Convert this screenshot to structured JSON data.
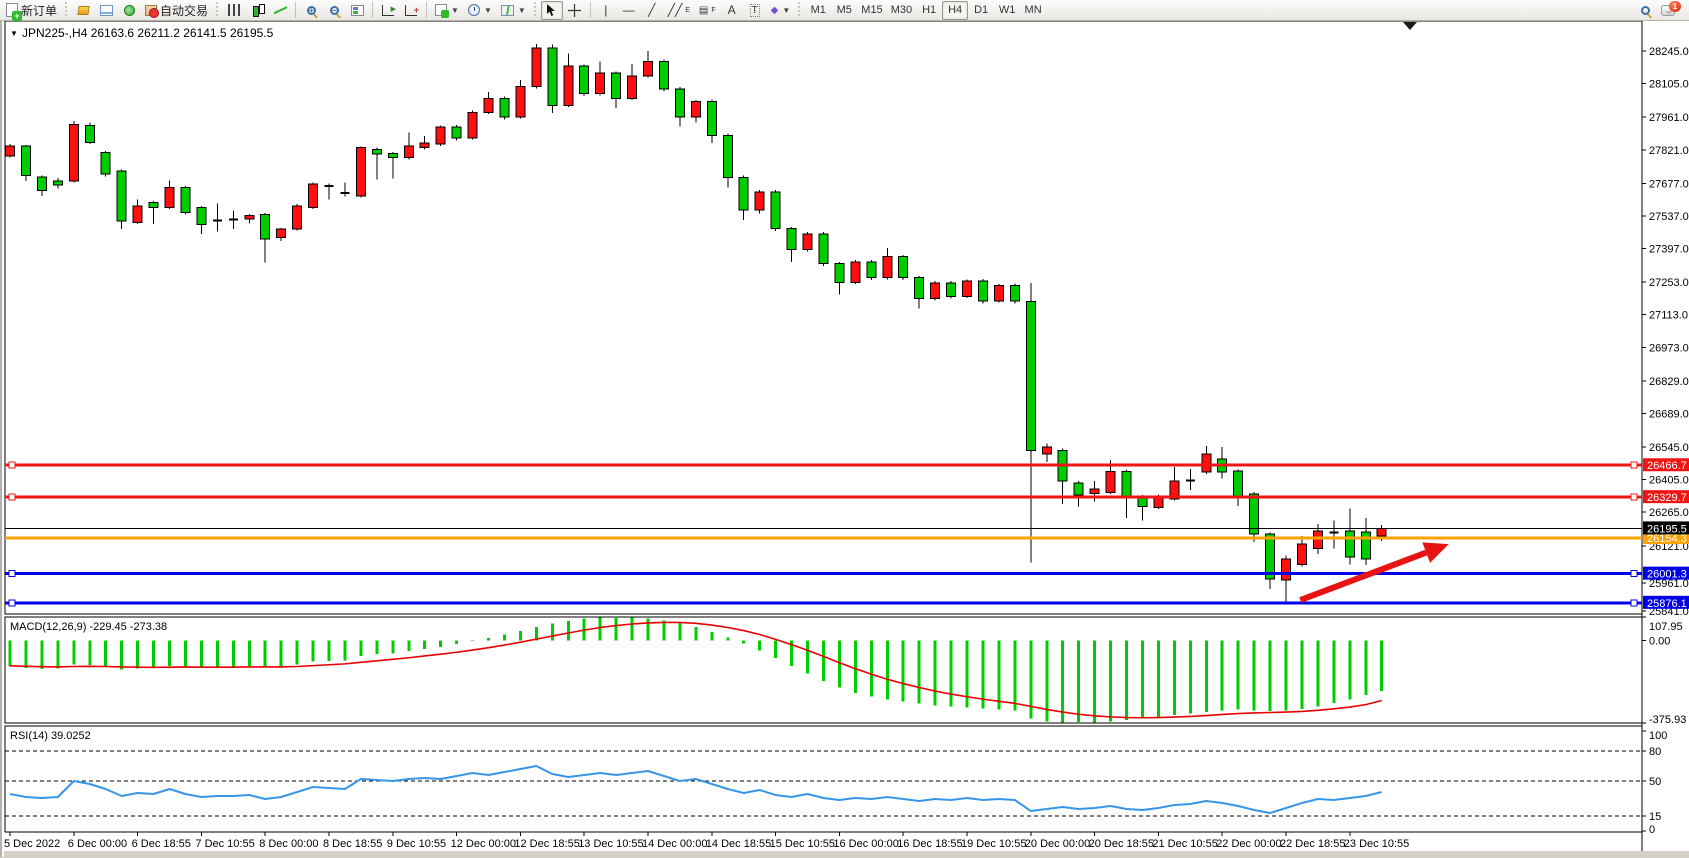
{
  "toolbar": {
    "new_order_label": "新订单",
    "autotrading_label": "自动交易",
    "icons": [
      "new-order-icon",
      "market-watch-icon",
      "new-chart-icon",
      "alerts-icon",
      "autotrading-icon",
      "bar-chart-icon",
      "candlestick-chart-icon",
      "line-chart-icon",
      "zoom-in-icon",
      "zoom-out-icon",
      "tile-windows-icon",
      "auto-scroll-icon",
      "chart-shift-icon",
      "indicators-icon",
      "periods-icon",
      "templates-icon",
      "cursor-icon",
      "crosshair-icon",
      "vertical-line-icon",
      "horizontal-line-icon",
      "trendline-icon",
      "equidistant-channel-icon",
      "fibonacci-icon",
      "text-icon",
      "text-label-icon",
      "arrows-icon",
      "search-icon",
      "chat-icon"
    ],
    "drawing_glyphs": {
      "vline": "|",
      "hline": "—",
      "trend": "╱",
      "channel_sub": "E",
      "fibo_sub": "F",
      "text": "A",
      "label": "T",
      "arrows": "◆"
    },
    "timeframes": {
      "items": [
        "M1",
        "M5",
        "M15",
        "M30",
        "H1",
        "H4",
        "D1",
        "W1",
        "MN"
      ],
      "active": "H4"
    },
    "chat_badge": "1"
  },
  "window": {
    "collapse_glyph": "▼",
    "symbol_info": "JPN225-,H4  26163.6 26211.2 26141.5 26195.5"
  },
  "chart_data": {
    "type": "candlestick",
    "symbol": "JPN225-",
    "timeframe": "H4",
    "current_bar": {
      "open": 26163.6,
      "high": 26211.2,
      "low": 26141.5,
      "close": 26195.5
    },
    "colors": {
      "up": "#ff0f0f",
      "down": "#00cd00",
      "outline": "#000000",
      "doji": "#000000",
      "sr_red": "#f01414",
      "sr_blue": "#0000e8",
      "sr_orange": "#ffa200",
      "price_line": "#000000",
      "macd_hist": "#00cd00",
      "macd_signal": "#e80000",
      "rsi_line": "#3796e8",
      "arrow": "#e81414"
    },
    "price_axis": {
      "visible_max": 28245.0,
      "visible_min": 25841.0,
      "ticks": [
        28245.0,
        28105.0,
        27961.0,
        27821.0,
        27677.0,
        27537.0,
        27397.0,
        27253.0,
        27113.0,
        26973.0,
        26829.0,
        26689.0,
        26545.0,
        26405.0,
        26265.0,
        26121.0,
        25961.0,
        25841.0
      ]
    },
    "time_labels": [
      "5 Dec 2022",
      "6 Dec 00:00",
      "6 Dec 18:55",
      "7 Dec 10:55",
      "8 Dec 00:00",
      "8 Dec 18:55",
      "9 Dec 10:55",
      "12 Dec 00:00",
      "12 Dec 18:55",
      "13 Dec 10:55",
      "14 Dec 00:00",
      "14 Dec 18:55",
      "15 Dec 10:55",
      "16 Dec 00:00",
      "16 Dec 18:55",
      "19 Dec 10:55",
      "20 Dec 00:00",
      "20 Dec 18:55",
      "21 Dec 10:55",
      "22 Dec 00:00",
      "22 Dec 18:55",
      "23 Dec 10:55"
    ],
    "bars_per_time_label": 4,
    "candles": [
      [
        27795,
        27845,
        27788,
        27837
      ],
      [
        27837,
        27842,
        27687,
        27710
      ],
      [
        27704,
        27710,
        27623,
        27647
      ],
      [
        27687,
        27700,
        27655,
        27669
      ],
      [
        27687,
        27944,
        27680,
        27930
      ],
      [
        27926,
        27937,
        27845,
        27852
      ],
      [
        27809,
        27815,
        27706,
        27716
      ],
      [
        27730,
        27736,
        27480,
        27516
      ],
      [
        27509,
        27608,
        27502,
        27580
      ],
      [
        27594,
        27600,
        27502,
        27573
      ],
      [
        27573,
        27690,
        27566,
        27659
      ],
      [
        27659,
        27666,
        27544,
        27551
      ],
      [
        27573,
        27580,
        27460,
        27501
      ],
      [
        27516,
        27590,
        27470,
        27517
      ],
      [
        27520,
        27560,
        27480,
        27521
      ],
      [
        27524,
        27545,
        27505,
        27538
      ],
      [
        27544,
        27550,
        27337,
        27437
      ],
      [
        27444,
        27486,
        27430,
        27480
      ],
      [
        27480,
        27588,
        27474,
        27580
      ],
      [
        27573,
        27680,
        27566,
        27673
      ],
      [
        27666,
        27676,
        27608,
        27665
      ],
      [
        27634,
        27681,
        27620,
        27635
      ],
      [
        27623,
        27836,
        27616,
        27830
      ],
      [
        27823,
        27830,
        27694,
        27802
      ],
      [
        27806,
        27812,
        27697,
        27787
      ],
      [
        27787,
        27895,
        27780,
        27837
      ],
      [
        27830,
        27880,
        27823,
        27851
      ],
      [
        27845,
        27925,
        27838,
        27918
      ],
      [
        27918,
        27928,
        27860,
        27872
      ],
      [
        27872,
        27990,
        27865,
        27982
      ],
      [
        27982,
        28070,
        27975,
        28042
      ],
      [
        28042,
        28050,
        27952,
        27962
      ],
      [
        27962,
        28120,
        27955,
        28092
      ],
      [
        28092,
        28275,
        28085,
        28258
      ],
      [
        28258,
        28272,
        27978,
        28012
      ],
      [
        28012,
        28235,
        28005,
        28180
      ],
      [
        28180,
        28188,
        28052,
        28062
      ],
      [
        28062,
        28200,
        28055,
        28150
      ],
      [
        28150,
        28158,
        28000,
        28042
      ],
      [
        28042,
        28190,
        28035,
        28138
      ],
      [
        28138,
        28245,
        28131,
        28200
      ],
      [
        28200,
        28208,
        28072,
        28082
      ],
      [
        28082,
        28090,
        27920,
        27962
      ],
      [
        27962,
        28035,
        27938,
        28028
      ],
      [
        28028,
        28036,
        27850,
        27882
      ],
      [
        27882,
        27890,
        27660,
        27702
      ],
      [
        27702,
        27710,
        27520,
        27562
      ],
      [
        27562,
        27648,
        27548,
        27640
      ],
      [
        27640,
        27648,
        27472,
        27482
      ],
      [
        27482,
        27490,
        27340,
        27392
      ],
      [
        27392,
        27468,
        27385,
        27460
      ],
      [
        27460,
        27468,
        27322,
        27332
      ],
      [
        27332,
        27340,
        27200,
        27252
      ],
      [
        27252,
        27348,
        27245,
        27340
      ],
      [
        27340,
        27348,
        27262,
        27272
      ],
      [
        27272,
        27400,
        27265,
        27362
      ],
      [
        27362,
        27370,
        27262,
        27272
      ],
      [
        27272,
        27280,
        27140,
        27182
      ],
      [
        27182,
        27258,
        27175,
        27250
      ],
      [
        27250,
        27258,
        27182,
        27192
      ],
      [
        27192,
        27265,
        27185,
        27258
      ],
      [
        27258,
        27266,
        27162,
        27172
      ],
      [
        27172,
        27245,
        27165,
        27238
      ],
      [
        27238,
        27246,
        27162,
        27172
      ],
      [
        27170,
        27250,
        26050,
        26530
      ],
      [
        26515,
        26560,
        26480,
        26545
      ],
      [
        26530,
        26538,
        26300,
        26400
      ],
      [
        26390,
        26398,
        26290,
        26340
      ],
      [
        26345,
        26400,
        26310,
        26365
      ],
      [
        26350,
        26490,
        26343,
        26440
      ],
      [
        26440,
        26448,
        26240,
        26335
      ],
      [
        26330,
        26338,
        26230,
        26290
      ],
      [
        26285,
        26342,
        26278,
        26335
      ],
      [
        26322,
        26459,
        26315,
        26399
      ],
      [
        26400,
        26450,
        26360,
        26402
      ],
      [
        26437,
        26549,
        26430,
        26515
      ],
      [
        26493,
        26545,
        26410,
        26437
      ],
      [
        26441,
        26449,
        26292,
        26334
      ],
      [
        26343,
        26351,
        26137,
        26171
      ],
      [
        26171,
        26179,
        25935,
        25978
      ],
      [
        25975,
        26080,
        25876,
        26065
      ],
      [
        26040,
        26163,
        26033,
        26128
      ],
      [
        26110,
        26215,
        26085,
        26185
      ],
      [
        26175,
        26230,
        26110,
        26177
      ],
      [
        26184,
        26280,
        26040,
        26073
      ],
      [
        26180,
        26240,
        26038,
        26065
      ],
      [
        26163.6,
        26211.2,
        26141.5,
        26195.5
      ]
    ],
    "hlines": [
      {
        "value": 26466.7,
        "color_key": "sr_red",
        "width": 3,
        "handles": true
      },
      {
        "value": 26329.7,
        "color_key": "sr_red",
        "width": 3,
        "handles": true
      },
      {
        "value": 26154.3,
        "color_key": "sr_orange",
        "width": 3,
        "handles": false
      },
      {
        "value": 26001.3,
        "color_key": "sr_blue",
        "width": 3,
        "handles": true
      },
      {
        "value": 25876.1,
        "color_key": "sr_blue",
        "width": 3,
        "handles": true
      }
    ],
    "current_price": 26195.5,
    "arrow_annotation": {
      "from_bar": 80.9,
      "from_price": 25888,
      "to_bar": 90.2,
      "to_price": 26128
    },
    "macd": {
      "name": "MACD",
      "params": "12,26,9",
      "value": -229.45,
      "signal_value": -273.38,
      "label_text": "MACD(12,26,9) -229.45 -273.38",
      "scale_max": 107.95,
      "scale_min": -375.93,
      "axis_ticks": [
        107.95,
        0.0,
        -375.93
      ],
      "hist": [
        -118,
        -125,
        -130,
        -128,
        -110,
        -112,
        -120,
        -132,
        -128,
        -125,
        -115,
        -118,
        -125,
        -122,
        -120,
        -115,
        -122,
        -118,
        -108,
        -95,
        -92,
        -90,
        -70,
        -62,
        -58,
        -48,
        -38,
        -28,
        -15,
        -2,
        12,
        28,
        45,
        62,
        78,
        90,
        100,
        106,
        107.95,
        105,
        100,
        92,
        80,
        62,
        40,
        15,
        -12,
        -45,
        -80,
        -115,
        -150,
        -185,
        -215,
        -238,
        -255,
        -268,
        -278,
        -288,
        -295,
        -300,
        -305,
        -310,
        -315,
        -320,
        -355,
        -368,
        -374,
        -375.93,
        -373,
        -368,
        -362,
        -355,
        -348,
        -340,
        -332,
        -325,
        -318,
        -315,
        -318,
        -322,
        -320,
        -312,
        -300,
        -285,
        -268,
        -248,
        -229.45
      ],
      "signal": [
        -115,
        -117,
        -119,
        -120,
        -118,
        -117,
        -118,
        -120,
        -121,
        -122,
        -121,
        -120,
        -121,
        -121,
        -121,
        -120,
        -120,
        -120,
        -118,
        -114,
        -110,
        -106,
        -99,
        -92,
        -85,
        -78,
        -70,
        -62,
        -53,
        -43,
        -32,
        -20,
        -7,
        7,
        21,
        35,
        48,
        60,
        69,
        76,
        81,
        83,
        83,
        79,
        71,
        60,
        46,
        28,
        6,
        -18,
        -44,
        -72,
        -101,
        -128,
        -153,
        -176,
        -196,
        -214,
        -230,
        -244,
        -256,
        -267,
        -277,
        -286,
        -300,
        -314,
        -326,
        -336,
        -343,
        -348,
        -351,
        -352,
        -351,
        -349,
        -346,
        -342,
        -337,
        -333,
        -330,
        -328,
        -326,
        -323,
        -318,
        -311,
        -303,
        -292,
        -273.38
      ]
    },
    "rsi": {
      "name": "RSI",
      "period": 14,
      "value": 39.0252,
      "label_text": "RSI(14) 39.0252",
      "scale_max": 100,
      "scale_min": 0,
      "axis_ticks": [
        100,
        80,
        50,
        15,
        0
      ],
      "levels": [
        80,
        50,
        15
      ],
      "values": [
        37,
        34,
        33,
        34,
        50,
        47,
        42,
        35,
        38,
        37,
        42,
        37,
        34,
        35,
        35,
        36,
        32,
        34,
        39,
        44,
        43,
        42,
        52,
        51,
        50,
        52,
        53,
        52,
        55,
        58,
        56,
        59,
        62,
        65,
        57,
        54,
        56,
        58,
        56,
        58,
        60,
        55,
        50,
        52,
        47,
        42,
        38,
        41,
        36,
        34,
        37,
        33,
        31,
        33,
        32,
        34,
        32,
        30,
        32,
        31,
        33,
        31,
        32,
        31,
        20,
        22,
        24,
        22,
        23,
        25,
        22,
        21,
        23,
        26,
        27,
        30,
        28,
        25,
        21,
        18,
        23,
        28,
        32,
        31,
        33,
        35,
        39.0252
      ]
    }
  }
}
